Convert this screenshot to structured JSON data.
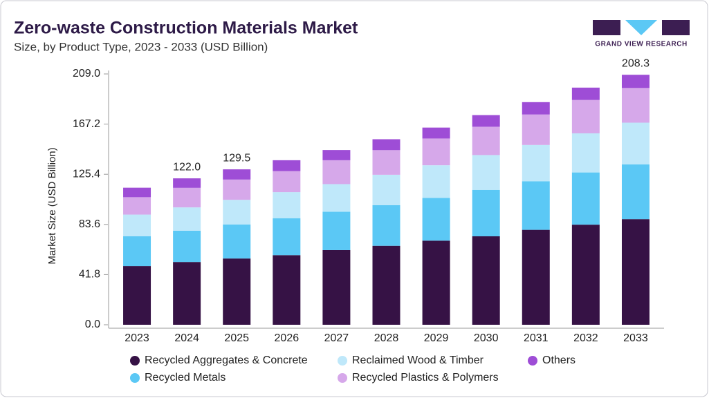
{
  "chart_data": {
    "type": "stacked_bar",
    "title": "Zero-waste Construction Materials Market",
    "subtitle": "Size, by Product Type, 2023 - 2033 (USD Billion)",
    "y_label": "Market Size (USD Billion)",
    "logo_text": "GRAND VIEW RESEARCH",
    "categories": [
      "2023",
      "2024",
      "2025",
      "2026",
      "2027",
      "2028",
      "2029",
      "2030",
      "2031",
      "2032",
      "2033"
    ],
    "series": [
      {
        "name": "Recycled Aggregates & Concrete",
        "color": "#361245",
        "values": [
          48.9,
          52.3,
          55.2,
          58.0,
          62.2,
          65.8,
          70.1,
          73.7,
          79.1,
          83.4,
          88.0
        ]
      },
      {
        "name": "Recycled Metals",
        "color": "#5bc8f5",
        "values": [
          24.8,
          26.1,
          28.4,
          30.8,
          32.0,
          33.8,
          35.6,
          38.7,
          40.5,
          43.5,
          45.6
        ]
      },
      {
        "name": "Reclaimed Wood & Timber",
        "color": "#bfe8fa",
        "values": [
          18.1,
          19.4,
          20.5,
          21.7,
          23.0,
          25.4,
          27.2,
          29.0,
          30.2,
          32.6,
          34.8
        ]
      },
      {
        "name": "Recycled Plastics & Polymers",
        "color": "#d6a8ea",
        "values": [
          14.5,
          16.3,
          16.9,
          17.5,
          19.9,
          20.5,
          22.3,
          23.6,
          25.4,
          27.8,
          28.9
        ]
      },
      {
        "name": "Others",
        "color": "#9e4dd6",
        "values": [
          7.9,
          7.9,
          8.5,
          9.1,
          8.5,
          9.1,
          9.1,
          9.7,
          10.3,
          10.3,
          11.0
        ]
      }
    ],
    "annotations": [
      {
        "x": "2024",
        "value": 122,
        "label": "122.0"
      },
      {
        "x": "2025",
        "value": 129.5,
        "label": "129.5"
      },
      {
        "x": "2033",
        "value": 208.3,
        "label": "208.3"
      }
    ],
    "ylim": [
      0,
      209
    ],
    "yticks": [
      {
        "value": 0,
        "label": "0.0"
      },
      41.8,
      83.6,
      125.4,
      167.2,
      {
        "value": 209,
        "label": "209.0"
      }
    ],
    "grid": false
  }
}
